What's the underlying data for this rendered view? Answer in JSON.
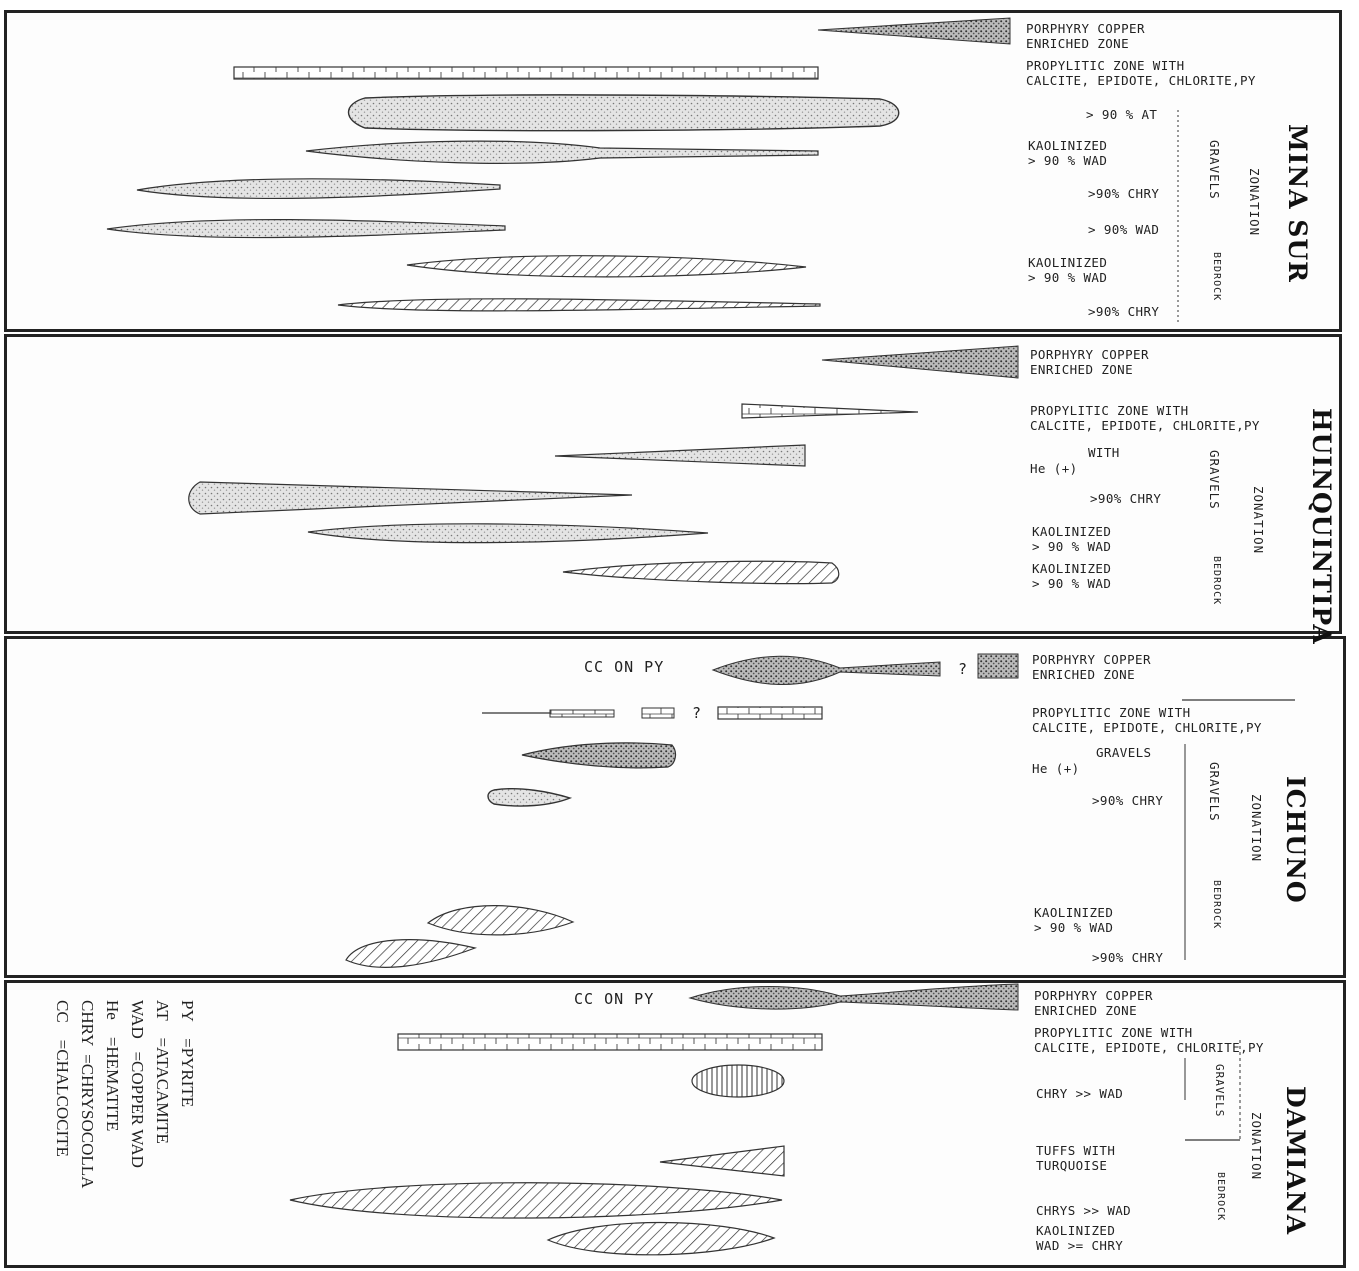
{
  "panels": [
    {
      "site": "MINA SUR",
      "zonation": "ZONATION",
      "gravels": "GRAVELS",
      "bedrock": "BEDROCK",
      "labels": [
        "PORPHYRY COPPER\nENRICHED ZONE",
        "PROPYLITIC ZONE WITH\nCALCITE, EPIDOTE, CHLORITE,PY",
        "> 90 % AT",
        "KAOLINIZED\n> 90 % WAD",
        ">90% CHRY",
        "> 90% WAD",
        "KAOLINIZED\n> 90 % WAD",
        ">90% CHRY"
      ]
    },
    {
      "site": "HUINQUINTIPA",
      "zonation": "ZONATION",
      "gravels": "GRAVELS",
      "bedrock": "BEDROCK",
      "labels": [
        "PORPHYRY COPPER\nENRICHED ZONE",
        "PROPYLITIC ZONE WITH\nCALCITE, EPIDOTE, CHLORITE,PY",
        "WITH",
        "He (+)",
        ">90% CHRY",
        "KAOLINIZED\n> 90 % WAD",
        "KAOLINIZED\n> 90 % WAD"
      ]
    },
    {
      "site": "ICHUNO",
      "zonation": "ZONATION",
      "gravels": "GRAVELS",
      "bedrock": "BEDROCK",
      "cc_on_py": "CC ON PY",
      "query": "?",
      "labels": [
        "PORPHYRY COPPER\nENRICHED ZONE",
        "PROPYLITIC ZONE WITH\nCALCITE, EPIDOTE, CHLORITE,PY",
        "GRAVELS",
        "He (+)",
        ">90% CHRY",
        "KAOLINIZED\n> 90 % WAD",
        ">90% CHRY"
      ]
    },
    {
      "site": "DAMIANA",
      "zonation": "ZONATION",
      "gravels": "GRAVELS",
      "bedrock": "BEDROCK",
      "cc_on_py": "CC ON PY",
      "labels": [
        "PORPHYRY COPPER\nENRICHED ZONE",
        "PROPYLITIC ZONE WITH\nCALCITE, EPIDOTE, CHLORITE,PY",
        "CHRY >> WAD",
        "TUFFS WITH\nTURQUOISE",
        "CHRYS >> WAD",
        "KAOLINIZED\nWAD >= CHRY"
      ]
    }
  ],
  "legend": [
    "PY    =PYRITE",
    "AT    =ATACAMITE",
    "WAD   =COPPER WAD",
    "He    =HEMATITE",
    "CHRY  =CHRYSOCOLLA",
    "CC    =CHALCOCITE"
  ],
  "colors": {
    "ink": "#222222",
    "fill": "#d9d9d9",
    "paper": "#ffffff"
  }
}
